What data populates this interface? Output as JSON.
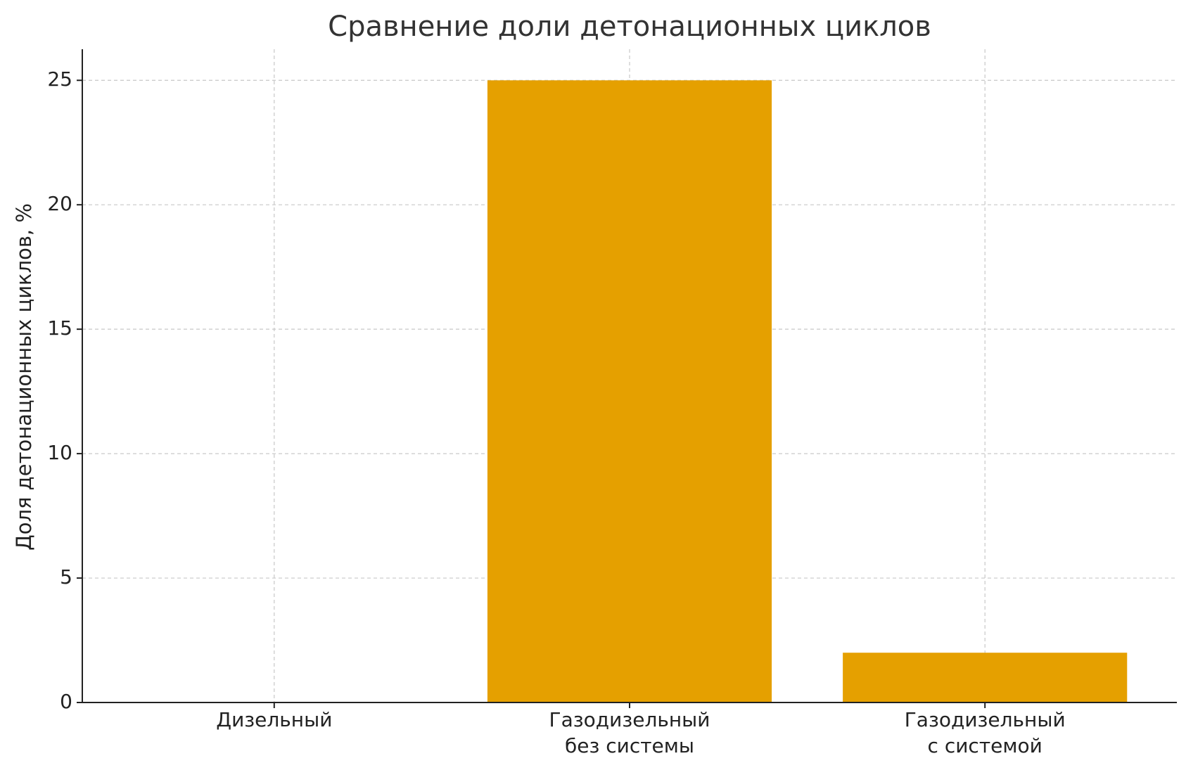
{
  "chart_data": {
    "type": "bar",
    "title": "Сравнение доли детонационных циклов",
    "y_label": "Доля детонационных циклов, %",
    "categories": [
      [
        "Дизельный"
      ],
      [
        "Газодизельный",
        "без системы"
      ],
      [
        "Газодизельный",
        "с системой"
      ]
    ],
    "values": [
      0,
      25,
      2
    ],
    "color": "#e5a000",
    "ylim": [
      0,
      26.25
    ],
    "yticks": [
      0,
      5,
      10,
      15,
      20,
      25
    ],
    "grid": true
  }
}
